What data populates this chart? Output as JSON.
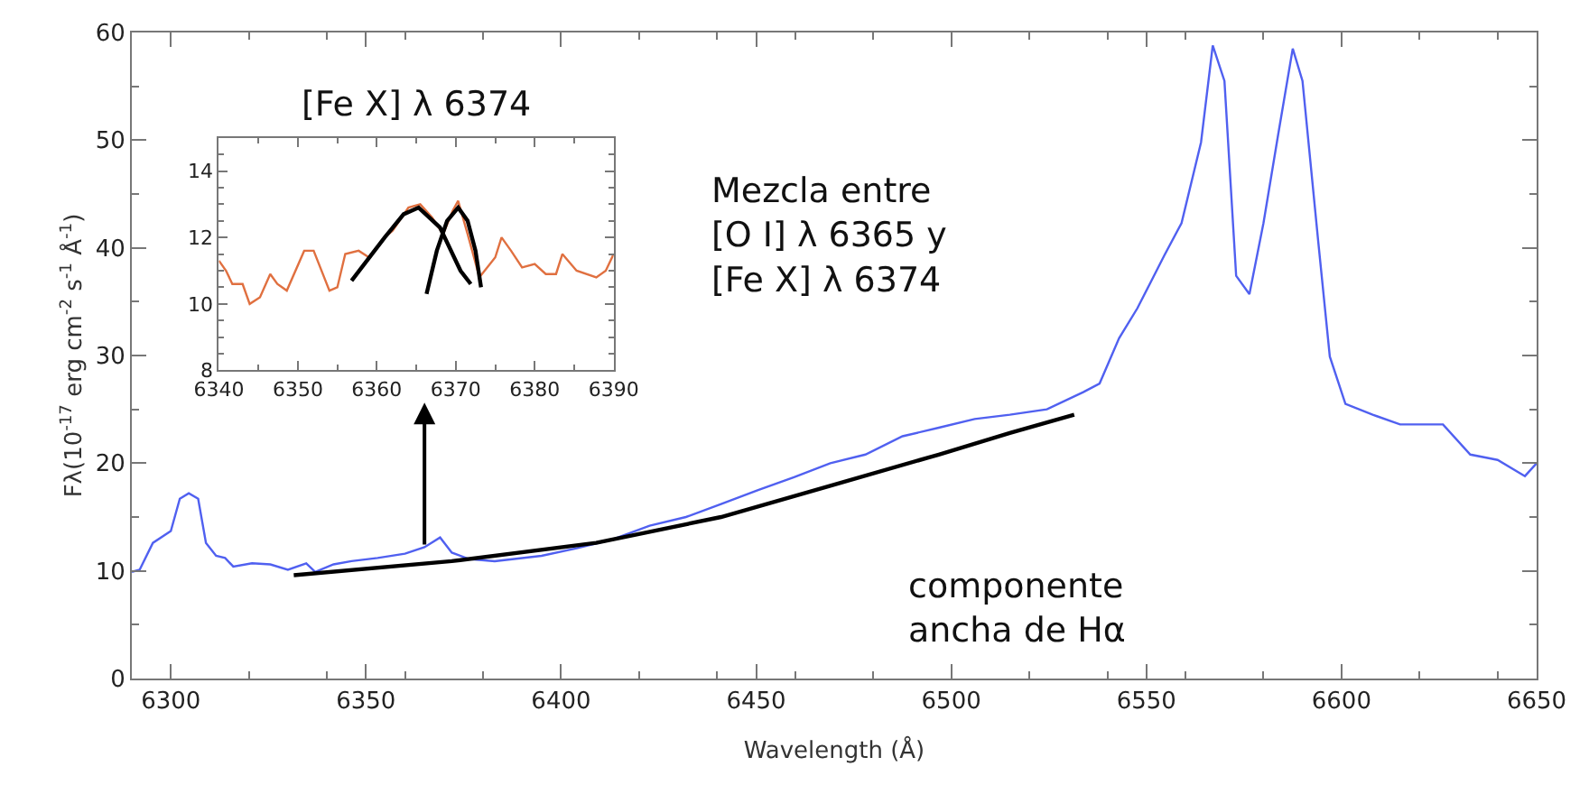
{
  "chart_data": [
    {
      "type": "line",
      "xlabel": "Wavelength (Å)",
      "ylabel": "Fλ(10$^{-17}$ erg cm$^{-2}$ s$^{-1}$ Å$^{-1}$)",
      "xlim": [
        6290,
        6650
      ],
      "ylim": [
        0,
        60
      ],
      "xticks": [
        6300,
        6350,
        6400,
        6450,
        6500,
        6550,
        6600,
        6650
      ],
      "yticks": [
        0,
        10,
        20,
        30,
        40,
        50,
        60
      ],
      "annotations": [
        "Mezcla entre\n[O I] λ 6365 y\n[Fe X] λ 6374",
        "componente\nancha de Hα"
      ],
      "series": [
        {
          "color": "#5060f0",
          "x": [
            6290,
            6292,
            6295.4,
            6300,
            6302.3,
            6304.6,
            6307,
            6309,
            6311.6,
            6313.9,
            6316,
            6320.8,
            6325.5,
            6330,
            6334.7,
            6337,
            6341.7,
            6346.3,
            6353,
            6360,
            6365,
            6369,
            6372,
            6376.4,
            6383,
            6395,
            6404,
            6413,
            6422.7,
            6432,
            6441,
            6450.5,
            6459.7,
            6469,
            6478,
            6487.5,
            6496.8,
            6506,
            6515,
            6524.5,
            6533.8,
            6538,
            6543,
            6547.7,
            6554.6,
            6559,
            6564,
            6567,
            6570,
            6573,
            6576.4,
            6580,
            6583.8,
            6587.5,
            6590,
            6594,
            6597,
            6601,
            6608,
            6615,
            6626,
            6633,
            6640,
            6647,
            6650
          ],
          "values": [
            9.9,
            10.1,
            12.6,
            13.7,
            16.7,
            17.2,
            16.7,
            12.6,
            11.4,
            11.2,
            10.4,
            10.7,
            10.6,
            10.1,
            10.7,
            9.9,
            10.6,
            10.9,
            11.2,
            11.6,
            12.2,
            13.1,
            11.7,
            11.1,
            10.9,
            11.4,
            12.1,
            12.9,
            14.2,
            15.0,
            16.2,
            17.5,
            18.7,
            20.0,
            20.8,
            22.5,
            23.3,
            24.1,
            24.5,
            25.0,
            26.6,
            27.4,
            31.6,
            34.4,
            39.3,
            42.3,
            49.8,
            58.8,
            55.5,
            37.4,
            35.7,
            42.3,
            50.6,
            58.5,
            55.5,
            40.7,
            29.9,
            25.5,
            24.5,
            23.6,
            23.6,
            20.8,
            20.3,
            18.8,
            20.0
          ]
        },
        {
          "color": "#000000",
          "x": [
            6331.5,
            6372,
            6409,
            6441,
            6469,
            6496.8,
            6515,
            6531.5
          ],
          "values": [
            9.6,
            10.9,
            12.6,
            15.0,
            17.9,
            20.8,
            22.8,
            24.5
          ]
        }
      ]
    },
    {
      "type": "line",
      "title": "[Fe X] λ 6374",
      "xlim": [
        6340,
        6390
      ],
      "ylim": [
        8,
        15
      ],
      "xticks": [
        6340,
        6350,
        6360,
        6370,
        6380,
        6390
      ],
      "yticks": [
        8,
        10,
        12,
        14
      ],
      "series": [
        {
          "color": "#e07040",
          "x": [
            6340,
            6340.9,
            6341.7,
            6343,
            6343.9,
            6345.2,
            6346.5,
            6347.4,
            6348.6,
            6350.8,
            6352,
            6354,
            6355,
            6356,
            6357.7,
            6359,
            6361,
            6362,
            6364,
            6365.5,
            6367,
            6368.4,
            6369.6,
            6370.3,
            6371.5,
            6373,
            6375,
            6375.8,
            6377,
            6378.4,
            6380,
            6381.4,
            6382.7,
            6383.5,
            6385.3,
            6387.8,
            6389,
            6390
          ],
          "values": [
            11.3,
            11.0,
            10.6,
            10.6,
            10.0,
            10.2,
            10.9,
            10.6,
            10.4,
            11.6,
            11.6,
            10.4,
            10.5,
            11.5,
            11.6,
            11.4,
            12.0,
            12.2,
            12.9,
            13.0,
            12.6,
            12.1,
            12.8,
            13.1,
            12.1,
            10.8,
            11.4,
            12.0,
            11.6,
            11.1,
            11.2,
            10.9,
            10.9,
            11.5,
            11.0,
            10.8,
            11.0,
            11.5
          ]
        },
        {
          "color": "#000000",
          "x": [
            6356.8,
            6361,
            6363.4,
            6365.3,
            6368,
            6370.6,
            6371.9
          ],
          "values": [
            10.7,
            12.0,
            12.7,
            12.9,
            12.3,
            11.0,
            10.6
          ]
        },
        {
          "color": "#000000",
          "x": [
            6366.3,
            6367.6,
            6368.9,
            6370.3,
            6371.5,
            6372.5,
            6373.2
          ],
          "values": [
            10.3,
            11.6,
            12.5,
            12.9,
            12.5,
            11.6,
            10.5
          ]
        }
      ]
    }
  ]
}
